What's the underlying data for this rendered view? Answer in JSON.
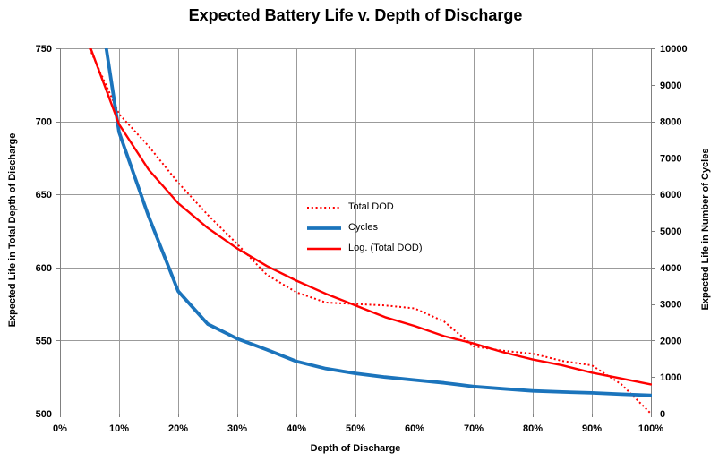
{
  "chart_data": {
    "type": "line",
    "title": "Expected Battery Life v. Depth of Discharge",
    "x_axis": {
      "label": "Depth of Discharge",
      "min": 0,
      "max": 1,
      "tick_labels": [
        "0%",
        "10%",
        "20%",
        "30%",
        "40%",
        "50%",
        "60%",
        "70%",
        "80%",
        "90%",
        "100%"
      ]
    },
    "y_axis_left": {
      "label": "Expected Life in Total Depth of Discharge",
      "min": 500,
      "max": 750,
      "ticks": [
        500,
        550,
        600,
        650,
        700,
        750
      ]
    },
    "y_axis_right": {
      "label": "Expected Life in Number of Cycles",
      "min": 0,
      "max": 10000,
      "ticks": [
        0,
        1000,
        2000,
        3000,
        4000,
        5000,
        6000,
        7000,
        8000,
        9000,
        10000
      ]
    },
    "grid": true,
    "legend_entries": [
      "Total DOD",
      "Cycles",
      "Log. (Total DOD)"
    ],
    "x": [
      0.05,
      0.1,
      0.15,
      0.2,
      0.25,
      0.3,
      0.35,
      0.4,
      0.45,
      0.5,
      0.55,
      0.6,
      0.65,
      0.7,
      0.75,
      0.8,
      0.85,
      0.9,
      0.95,
      1.0
    ],
    "series": [
      {
        "name": "Total DOD",
        "axis": "left",
        "line": "dotted",
        "color": "#ff0000",
        "width": 2,
        "values": [
          750,
          705,
          683,
          658,
          636,
          616,
          595,
          583,
          576,
          575,
          574,
          572,
          563,
          546,
          543,
          541,
          536,
          533,
          520,
          500
        ]
      },
      {
        "name": "Cycles",
        "axis": "right",
        "line": "solid",
        "color": "#1b74bc",
        "width": 3.8,
        "values": [
          13000,
          7700,
          5400,
          3350,
          2450,
          2050,
          1750,
          1430,
          1230,
          1100,
          1000,
          920,
          840,
          740,
          680,
          620,
          590,
          565,
          530,
          500
        ]
      },
      {
        "name": "Log. (Total DOD)",
        "axis": "left",
        "line": "solid",
        "color": "#ff0000",
        "width": 2.4,
        "values": [
          752,
          698,
          667,
          644,
          627,
          613,
          601,
          591,
          582,
          574,
          566,
          560,
          553,
          548,
          542,
          537,
          533,
          528,
          524,
          520
        ]
      }
    ],
    "colors": {
      "background": "#ffffff",
      "gridline": "#9b9b9b",
      "axis_line": "#808080",
      "text": "#000000",
      "series_red": "#ff0000",
      "series_blue": "#1b74bc"
    }
  }
}
